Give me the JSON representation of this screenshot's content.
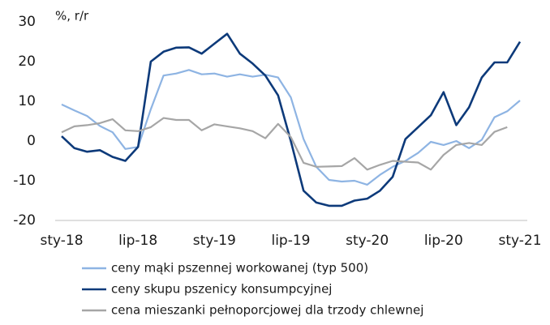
{
  "chart_data": {
    "type": "line",
    "y_unit": "%, r/r",
    "categories": [
      "sty-18",
      null,
      null,
      null,
      null,
      null,
      "lip-18",
      null,
      null,
      null,
      null,
      null,
      "sty-19",
      null,
      null,
      null,
      null,
      null,
      "lip-19",
      null,
      null,
      null,
      null,
      null,
      "sty-20",
      null,
      null,
      null,
      null,
      null,
      "lip-20",
      null,
      null,
      null,
      null,
      null,
      "sty-21"
    ],
    "series": [
      {
        "name": "ceny mąki pszennej workowanej (typ 500)",
        "color": "#8eb4e3",
        "values": [
          9.2,
          7.7,
          6.3,
          3.8,
          2.2,
          -2.0,
          -1.5,
          8.0,
          16.5,
          17.0,
          17.9,
          16.8,
          17.0,
          16.2,
          16.8,
          16.2,
          16.7,
          16.0,
          11.0,
          0.5,
          -6.5,
          -9.8,
          -10.2,
          -10.0,
          -11.0,
          -8.5,
          -6.5,
          -5.0,
          -3.0,
          -0.2,
          -1.0,
          0.0,
          -1.8,
          0.3,
          6.0,
          7.5,
          10.2
        ]
      },
      {
        "name": "ceny skupu pszenicy konsumpcyjnej",
        "color": "#0d3a7a",
        "values": [
          1.2,
          -1.8,
          -2.7,
          -2.3,
          -4.0,
          -5.0,
          -1.5,
          20.0,
          22.5,
          23.5,
          23.6,
          22.0,
          24.5,
          27.0,
          22.0,
          19.5,
          16.5,
          11.5,
          0.0,
          -12.5,
          -15.5,
          -16.3,
          -16.3,
          -15.0,
          -14.5,
          -12.5,
          -9.0,
          0.5,
          3.5,
          6.5,
          12.3,
          4.0,
          8.5,
          16.0,
          19.8,
          19.8,
          25.0
        ]
      },
      {
        "name": "cena mieszanki pełnoporcjowej dla trzody chlewnej",
        "color": "#a6a6a6",
        "values": [
          2.2,
          3.7,
          4.0,
          4.5,
          5.5,
          2.7,
          2.5,
          3.5,
          5.8,
          5.3,
          5.3,
          2.7,
          4.2,
          3.7,
          3.2,
          2.5,
          0.7,
          4.3,
          1.0,
          -5.5,
          -6.5,
          -6.4,
          -6.3,
          -4.3,
          -7.2,
          -6.0,
          -5.0,
          -5.2,
          -5.4,
          -7.2,
          -3.5,
          -1.0,
          -0.5,
          -1.0,
          2.3,
          3.5,
          null
        ]
      }
    ],
    "ylim": [
      -20,
      30
    ],
    "yticks": [
      -20,
      -10,
      0,
      10,
      20,
      30
    ],
    "grid": false
  }
}
